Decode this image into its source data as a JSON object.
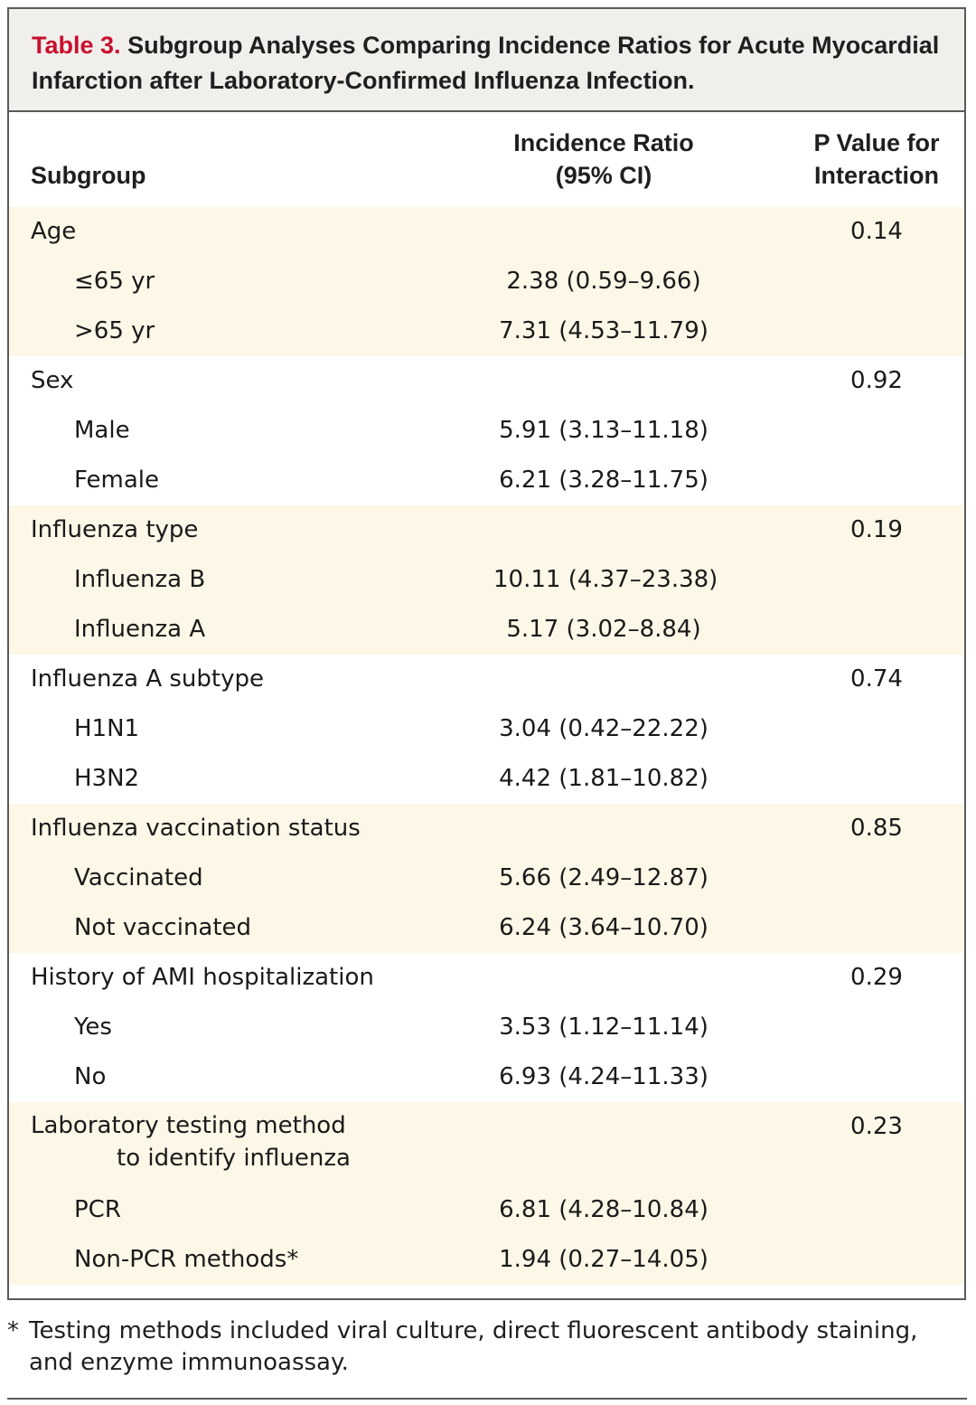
{
  "table": {
    "label": "Table 3.",
    "title": "Subgroup Analyses Comparing Incidence Ratios for Acute Myocardial Infarction after Laboratory-Confirmed Influenza Infection.",
    "headers": {
      "subgroup": "Subgroup",
      "ratio_line1": "Incidence Ratio",
      "ratio_line2": "(95% CI)",
      "pvalue_line1": "P Value for",
      "pvalue_line2": "Interaction"
    },
    "groups": [
      {
        "name": "Age",
        "p": "0.14",
        "rows": [
          {
            "label": "≤65 yr",
            "ratio": "2.38 (0.59–9.66)"
          },
          {
            "label": ">65 yr",
            "ratio": "7.31 (4.53–11.79)"
          }
        ]
      },
      {
        "name": "Sex",
        "p": "0.92",
        "rows": [
          {
            "label": "Male",
            "ratio": "5.91 (3.13–11.18)"
          },
          {
            "label": "Female",
            "ratio": "6.21 (3.28–11.75)"
          }
        ]
      },
      {
        "name": "Influenza type",
        "p": "0.19",
        "rows": [
          {
            "label": "Influenza B",
            "ratio": "10.11 (4.37–23.38)"
          },
          {
            "label": "Influenza A",
            "ratio": "5.17 (3.02–8.84)"
          }
        ]
      },
      {
        "name": "Influenza A subtype",
        "p": "0.74",
        "rows": [
          {
            "label": "H1N1",
            "ratio": "3.04 (0.42–22.22)"
          },
          {
            "label": "H3N2",
            "ratio": "4.42 (1.81–10.82)"
          }
        ]
      },
      {
        "name": "Influenza vaccination status",
        "p": "0.85",
        "rows": [
          {
            "label": "Vaccinated",
            "ratio": "5.66 (2.49–12.87)"
          },
          {
            "label": "Not vaccinated",
            "ratio": "6.24 (3.64–10.70)"
          }
        ]
      },
      {
        "name": "History of AMI hospitalization",
        "p": "0.29",
        "rows": [
          {
            "label": "Yes",
            "ratio": "3.53 (1.12–11.14)"
          },
          {
            "label": "No",
            "ratio": "6.93 (4.24–11.33)"
          }
        ]
      },
      {
        "name": "Laboratory testing method",
        "name_cont": "to identify influenza",
        "p": "0.23",
        "rows": [
          {
            "label": "PCR",
            "ratio": "6.81 (4.28–10.84)"
          },
          {
            "label": "Non-PCR methods*",
            "ratio": "1.94 (0.27–14.05)"
          }
        ]
      }
    ]
  },
  "footnote": {
    "marker": "*",
    "text": "Testing methods included viral culture, direct fluorescent antibody staining, and enzyme immunoassay."
  },
  "colors": {
    "label_red": "#c8102e",
    "shade": "#fdf7e7",
    "caption_bg": "#f1efec"
  }
}
